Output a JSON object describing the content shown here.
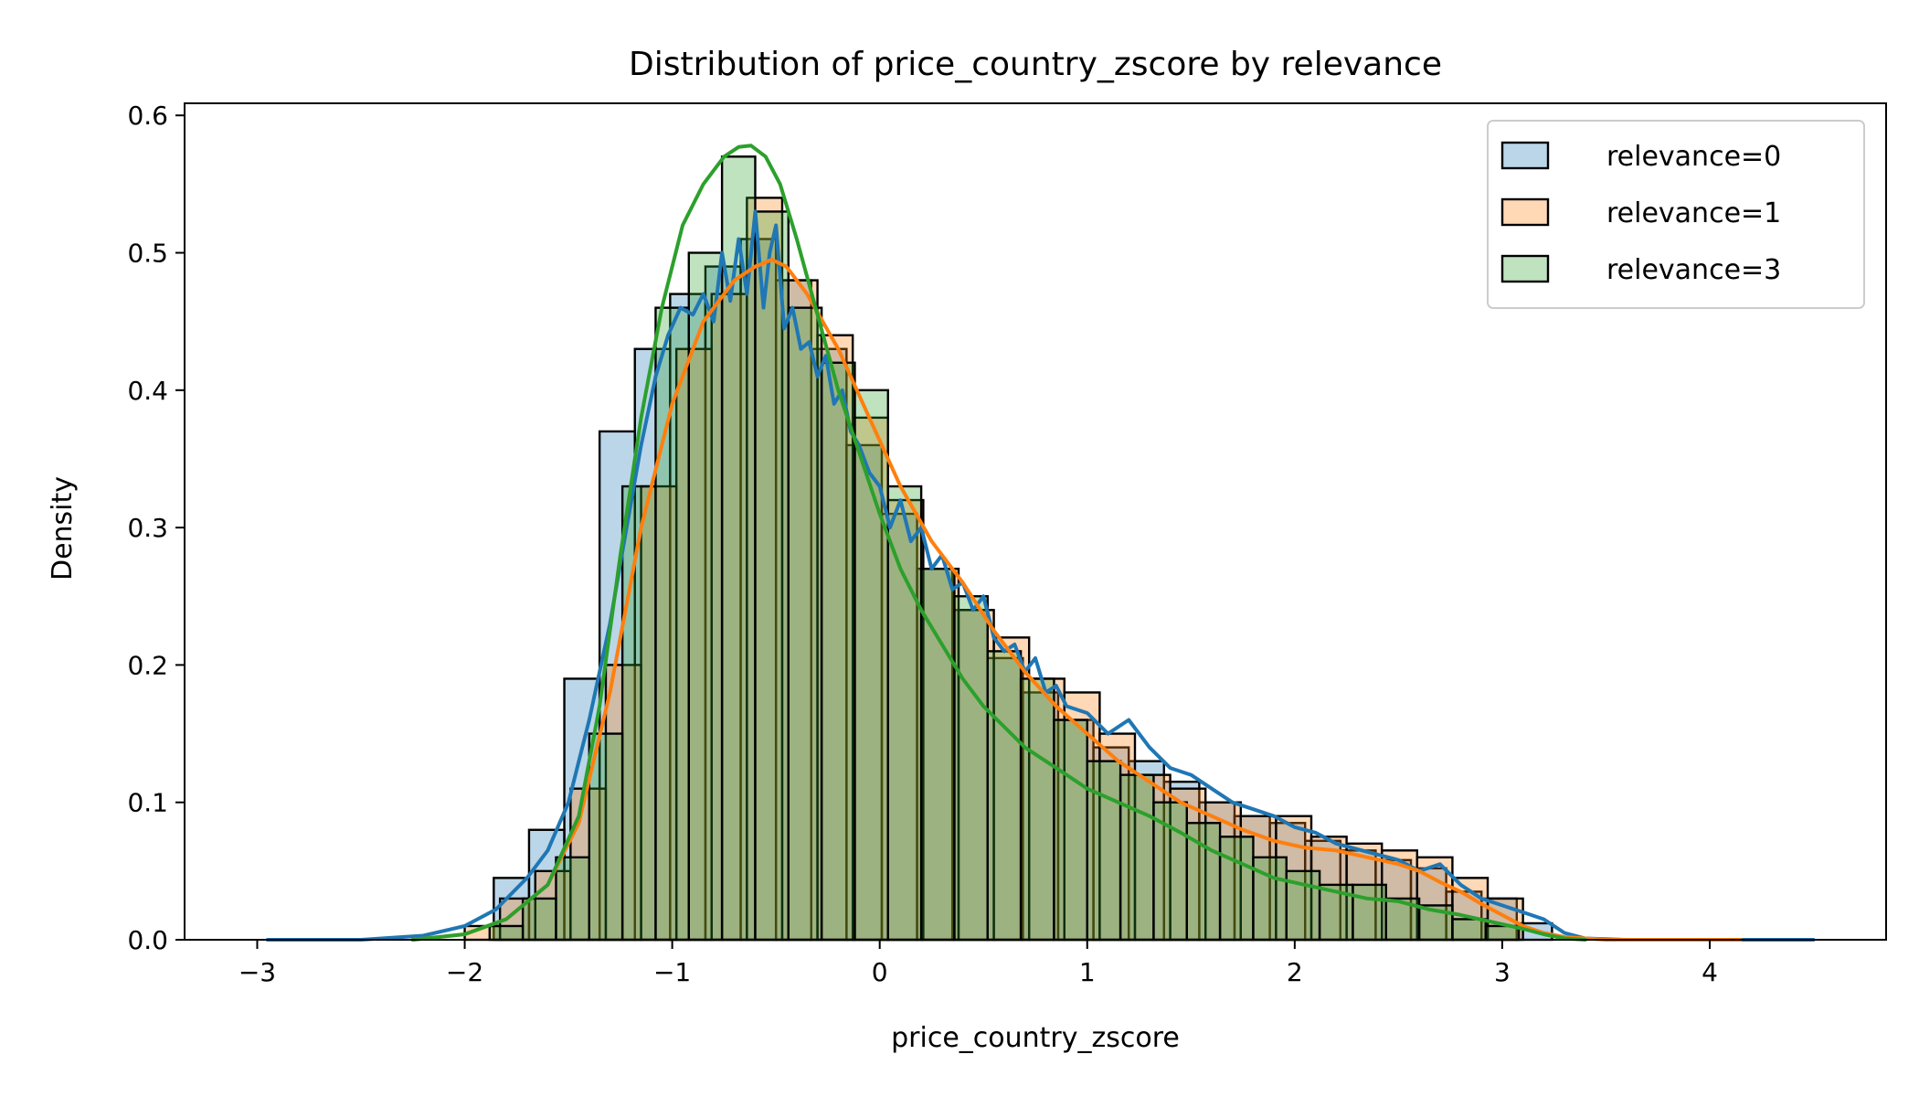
{
  "chart_data": {
    "type": "histogram",
    "title": "Distribution of price_country_zscore by relevance",
    "xlabel": "price_country_zscore",
    "ylabel": "Density",
    "xlim": [
      -3.35,
      4.85
    ],
    "ylim": [
      0.0,
      0.6088
    ],
    "xticks": [
      -3,
      -2,
      -1,
      0,
      1,
      2,
      3,
      4
    ],
    "xtick_labels": [
      "−3",
      "−2",
      "−1",
      "0",
      "1",
      "2",
      "3",
      "4"
    ],
    "yticks": [
      0.0,
      0.1,
      0.2,
      0.3,
      0.4,
      0.5,
      0.6
    ],
    "ytick_labels": [
      "0.0",
      "0.1",
      "0.2",
      "0.3",
      "0.4",
      "0.5",
      "0.6"
    ],
    "legend_position": "top-right",
    "grid": false,
    "series": [
      {
        "name": "relevance=0",
        "fill": "#1f77b4",
        "line": "#1f77b4",
        "bin_edges": [
          -1.86,
          -1.69,
          -1.52,
          -1.35,
          -1.18,
          -1.01,
          -0.84,
          -0.67,
          -0.5,
          -0.33,
          -0.16,
          0.01,
          0.18,
          0.35,
          0.52,
          0.69,
          0.86,
          1.03,
          1.2,
          1.37,
          1.54,
          1.71,
          1.88,
          2.05,
          2.22,
          2.39,
          2.56,
          2.73,
          2.9,
          3.07,
          3.24
        ],
        "densities": [
          0.045,
          0.08,
          0.19,
          0.37,
          0.43,
          0.47,
          0.49,
          0.51,
          0.48,
          0.43,
          0.36,
          0.31,
          0.27,
          0.24,
          0.205,
          0.18,
          0.16,
          0.14,
          0.13,
          0.115,
          0.1,
          0.09,
          0.085,
          0.072,
          0.065,
          0.058,
          0.052,
          0.035,
          0.03,
          0.012
        ],
        "kde_x": [
          -2.95,
          -2.5,
          -2.2,
          -2.0,
          -1.85,
          -1.7,
          -1.6,
          -1.5,
          -1.4,
          -1.3,
          -1.22,
          -1.15,
          -1.08,
          -1.02,
          -0.96,
          -0.9,
          -0.85,
          -0.8,
          -0.76,
          -0.72,
          -0.68,
          -0.64,
          -0.6,
          -0.56,
          -0.53,
          -0.5,
          -0.46,
          -0.42,
          -0.38,
          -0.34,
          -0.3,
          -0.26,
          -0.22,
          -0.18,
          -0.14,
          -0.1,
          -0.05,
          0.0,
          0.05,
          0.1,
          0.15,
          0.2,
          0.25,
          0.3,
          0.35,
          0.4,
          0.45,
          0.5,
          0.55,
          0.6,
          0.65,
          0.7,
          0.75,
          0.8,
          0.85,
          0.9,
          1.0,
          1.1,
          1.2,
          1.3,
          1.4,
          1.5,
          1.6,
          1.7,
          1.8,
          1.9,
          2.0,
          2.1,
          2.2,
          2.3,
          2.4,
          2.5,
          2.6,
          2.7,
          2.8,
          2.9,
          3.0,
          3.1,
          3.2,
          3.3,
          3.4,
          3.6,
          4.0,
          4.5
        ],
        "kde_y": [
          0.0,
          0.0,
          0.003,
          0.01,
          0.022,
          0.045,
          0.065,
          0.1,
          0.16,
          0.23,
          0.3,
          0.36,
          0.41,
          0.44,
          0.46,
          0.455,
          0.47,
          0.45,
          0.5,
          0.465,
          0.51,
          0.47,
          0.53,
          0.46,
          0.5,
          0.52,
          0.445,
          0.46,
          0.43,
          0.435,
          0.41,
          0.425,
          0.39,
          0.4,
          0.37,
          0.36,
          0.34,
          0.33,
          0.3,
          0.32,
          0.29,
          0.3,
          0.27,
          0.28,
          0.255,
          0.26,
          0.24,
          0.25,
          0.22,
          0.21,
          0.215,
          0.195,
          0.205,
          0.18,
          0.185,
          0.17,
          0.165,
          0.15,
          0.16,
          0.14,
          0.125,
          0.12,
          0.11,
          0.1,
          0.095,
          0.09,
          0.082,
          0.078,
          0.07,
          0.066,
          0.062,
          0.058,
          0.05,
          0.055,
          0.04,
          0.03,
          0.025,
          0.02,
          0.015,
          0.005,
          0.001,
          0.0,
          0.0,
          0.0
        ]
      },
      {
        "name": "relevance=1",
        "fill": "#ff7f0e",
        "line": "#ff7f0e",
        "bin_edges": [
          -2.0,
          -1.83,
          -1.66,
          -1.49,
          -1.32,
          -1.15,
          -0.98,
          -0.81,
          -0.64,
          -0.47,
          -0.3,
          -0.13,
          0.04,
          0.21,
          0.38,
          0.55,
          0.72,
          0.89,
          1.06,
          1.23,
          1.4,
          1.57,
          1.74,
          1.91,
          2.08,
          2.25,
          2.42,
          2.59,
          2.76,
          2.93,
          3.1
        ],
        "densities": [
          0.01,
          0.03,
          0.05,
          0.11,
          0.2,
          0.33,
          0.43,
          0.47,
          0.54,
          0.48,
          0.44,
          0.38,
          0.32,
          0.27,
          0.24,
          0.22,
          0.19,
          0.18,
          0.15,
          0.12,
          0.11,
          0.1,
          0.09,
          0.09,
          0.075,
          0.07,
          0.065,
          0.06,
          0.045,
          0.03
        ],
        "kde_x": [
          -2.25,
          -2.0,
          -1.8,
          -1.6,
          -1.45,
          -1.3,
          -1.15,
          -1.0,
          -0.85,
          -0.7,
          -0.6,
          -0.52,
          -0.45,
          -0.35,
          -0.2,
          -0.05,
          0.1,
          0.25,
          0.4,
          0.55,
          0.7,
          0.85,
          1.0,
          1.15,
          1.3,
          1.45,
          1.6,
          1.75,
          1.9,
          2.05,
          2.2,
          2.35,
          2.5,
          2.6,
          2.7,
          2.8,
          2.9,
          3.0,
          3.1,
          3.2,
          3.3,
          3.5,
          3.8,
          4.15
        ],
        "kde_y": [
          0.0,
          0.004,
          0.015,
          0.04,
          0.085,
          0.18,
          0.3,
          0.39,
          0.45,
          0.48,
          0.49,
          0.495,
          0.49,
          0.47,
          0.43,
          0.38,
          0.33,
          0.29,
          0.26,
          0.225,
          0.195,
          0.17,
          0.15,
          0.13,
          0.115,
          0.1,
          0.09,
          0.08,
          0.072,
          0.067,
          0.065,
          0.06,
          0.055,
          0.05,
          0.042,
          0.035,
          0.026,
          0.018,
          0.01,
          0.005,
          0.002,
          0.0,
          0.0,
          0.0
        ]
      },
      {
        "name": "relevance=3",
        "fill": "#2ca02c",
        "line": "#2ca02c",
        "bin_edges": [
          -1.88,
          -1.72,
          -1.56,
          -1.4,
          -1.24,
          -1.08,
          -0.92,
          -0.76,
          -0.6,
          -0.44,
          -0.28,
          -0.12,
          0.04,
          0.2,
          0.36,
          0.52,
          0.68,
          0.84,
          1.0,
          1.16,
          1.32,
          1.48,
          1.64,
          1.8,
          1.96,
          2.12,
          2.28,
          2.44,
          2.6,
          2.76,
          2.92,
          3.08
        ],
        "densities": [
          0.01,
          0.03,
          0.06,
          0.15,
          0.33,
          0.46,
          0.5,
          0.57,
          0.53,
          0.46,
          0.42,
          0.4,
          0.33,
          0.27,
          0.25,
          0.21,
          0.19,
          0.16,
          0.13,
          0.12,
          0.1,
          0.085,
          0.075,
          0.06,
          0.05,
          0.04,
          0.04,
          0.03,
          0.025,
          0.015,
          0.01
        ],
        "kde_x": [
          -2.25,
          -2.0,
          -1.8,
          -1.6,
          -1.45,
          -1.35,
          -1.25,
          -1.15,
          -1.05,
          -0.95,
          -0.85,
          -0.75,
          -0.68,
          -0.62,
          -0.55,
          -0.48,
          -0.4,
          -0.3,
          -0.2,
          -0.1,
          0.0,
          0.1,
          0.2,
          0.3,
          0.4,
          0.5,
          0.6,
          0.7,
          0.8,
          0.9,
          1.0,
          1.15,
          1.3,
          1.45,
          1.6,
          1.75,
          1.9,
          2.05,
          2.2,
          2.35,
          2.5,
          2.65,
          2.8,
          2.95,
          3.1,
          3.2,
          3.3,
          3.4
        ],
        "kde_y": [
          0.0,
          0.004,
          0.015,
          0.04,
          0.09,
          0.17,
          0.28,
          0.38,
          0.46,
          0.52,
          0.55,
          0.57,
          0.577,
          0.578,
          0.57,
          0.55,
          0.51,
          0.455,
          0.4,
          0.355,
          0.31,
          0.27,
          0.24,
          0.215,
          0.19,
          0.17,
          0.155,
          0.14,
          0.13,
          0.12,
          0.11,
          0.1,
          0.09,
          0.078,
          0.065,
          0.055,
          0.045,
          0.04,
          0.035,
          0.03,
          0.028,
          0.022,
          0.018,
          0.013,
          0.008,
          0.004,
          0.001,
          0.0
        ]
      }
    ]
  }
}
